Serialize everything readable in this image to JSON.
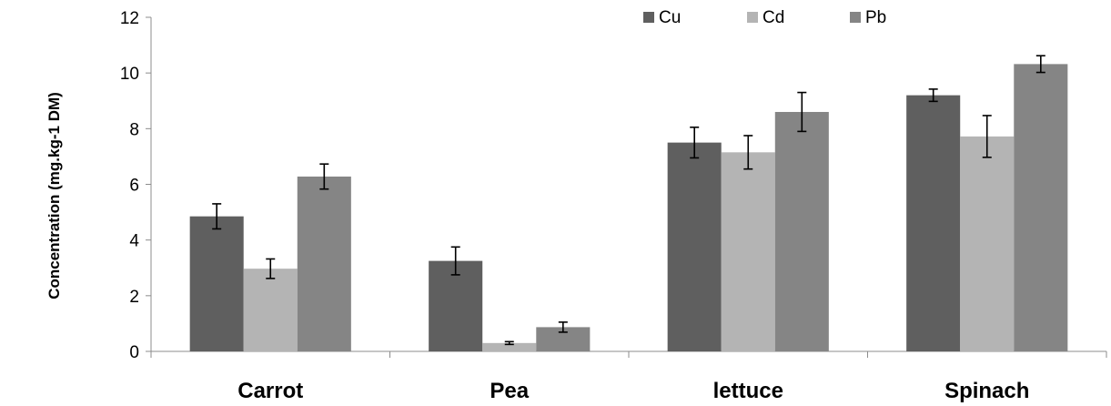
{
  "chart_data": {
    "type": "bar",
    "title": "",
    "xlabel": "",
    "ylabel": "Concentration (mg.kg-1 DM)",
    "categories": [
      "Carrot",
      "Pea",
      "lettuce",
      "Spinach"
    ],
    "ylim": [
      0,
      12
    ],
    "yticks": [
      0,
      2,
      4,
      6,
      8,
      10,
      12
    ],
    "grid": false,
    "legend_position": "top",
    "series": [
      {
        "name": "Cu",
        "color": "#5f5f5f",
        "values": [
          4.85,
          3.25,
          7.5,
          9.2
        ],
        "errors": [
          0.45,
          0.5,
          0.55,
          0.22
        ]
      },
      {
        "name": "Cd",
        "color": "#b4b4b4",
        "values": [
          2.97,
          0.3,
          7.15,
          7.72
        ],
        "errors": [
          0.35,
          0.05,
          0.6,
          0.75
        ]
      },
      {
        "name": "Pb",
        "color": "#858585",
        "values": [
          6.28,
          0.87,
          8.6,
          10.32
        ],
        "errors": [
          0.45,
          0.18,
          0.7,
          0.3
        ]
      }
    ]
  }
}
